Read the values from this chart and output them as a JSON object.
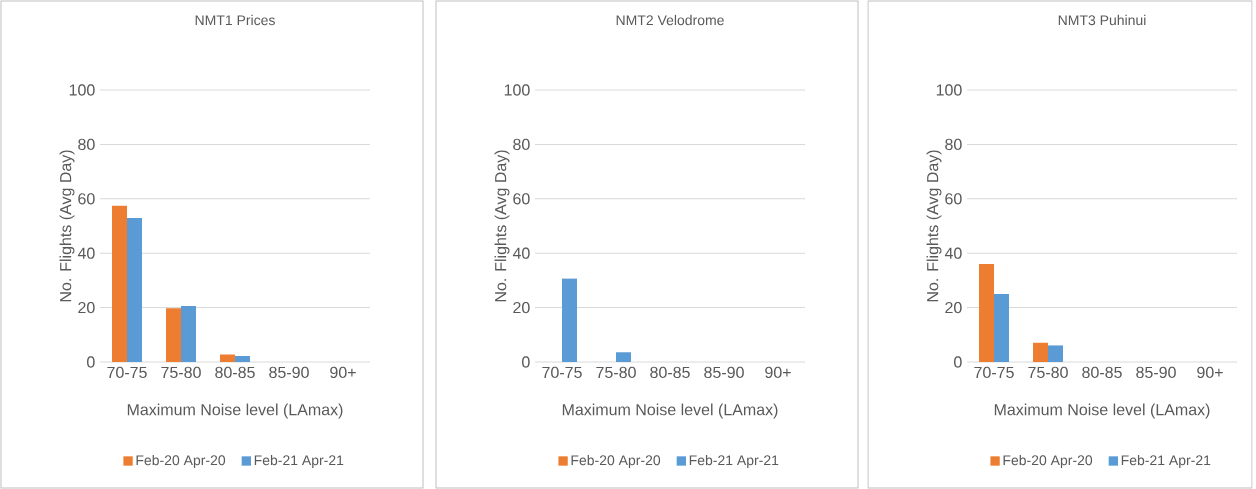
{
  "chart_data": [
    {
      "type": "bar",
      "title": "NMT1 Prices",
      "xlabel": "Maximum Noise level (LAmax)",
      "ylabel": "No. Flights (Avg Day)",
      "categories": [
        "70-75",
        "75-80",
        "80-85",
        "85-90",
        "90+"
      ],
      "series": [
        {
          "name": "Feb-20 Apr-20",
          "color": "#ed7d31",
          "values": [
            57.4,
            19.8,
            2.8,
            0,
            0
          ]
        },
        {
          "name": "Feb-21 Apr-21",
          "color": "#5b9bd5",
          "values": [
            52.9,
            20.6,
            2.2,
            0,
            0
          ]
        }
      ],
      "ylim": [
        0,
        100
      ],
      "yticks": [
        0,
        20,
        40,
        60,
        80,
        100
      ],
      "grid": "y",
      "legend": "bottom"
    },
    {
      "type": "bar",
      "title": "NMT2 Velodrome",
      "xlabel": "Maximum Noise level (LAmax)",
      "ylabel": "No. Flights (Avg Day)",
      "categories": [
        "70-75",
        "75-80",
        "80-85",
        "85-90",
        "90+"
      ],
      "series": [
        {
          "name": "Feb-20 Apr-20",
          "color": "#ed7d31",
          "values": [
            0,
            0,
            0,
            0,
            0
          ]
        },
        {
          "name": "Feb-21 Apr-21",
          "color": "#5b9bd5",
          "values": [
            30.7,
            3.6,
            0,
            0,
            0
          ]
        }
      ],
      "ylim": [
        0,
        100
      ],
      "yticks": [
        0,
        20,
        40,
        60,
        80,
        100
      ],
      "grid": "y",
      "legend": "bottom"
    },
    {
      "type": "bar",
      "title": "NMT3 Puhinui",
      "xlabel": "Maximum Noise level (LAmax)",
      "ylabel": "No. Flights (Avg Day)",
      "categories": [
        "70-75",
        "75-80",
        "80-85",
        "85-90",
        "90+"
      ],
      "series": [
        {
          "name": "Feb-20 Apr-20",
          "color": "#ed7d31",
          "values": [
            36,
            7.1,
            0,
            0,
            0
          ]
        },
        {
          "name": "Feb-21 Apr-21",
          "color": "#5b9bd5",
          "values": [
            25,
            6.1,
            0,
            0,
            0
          ]
        }
      ],
      "ylim": [
        0,
        100
      ],
      "yticks": [
        0,
        20,
        40,
        60,
        80,
        100
      ],
      "grid": "y",
      "legend": "bottom"
    }
  ]
}
